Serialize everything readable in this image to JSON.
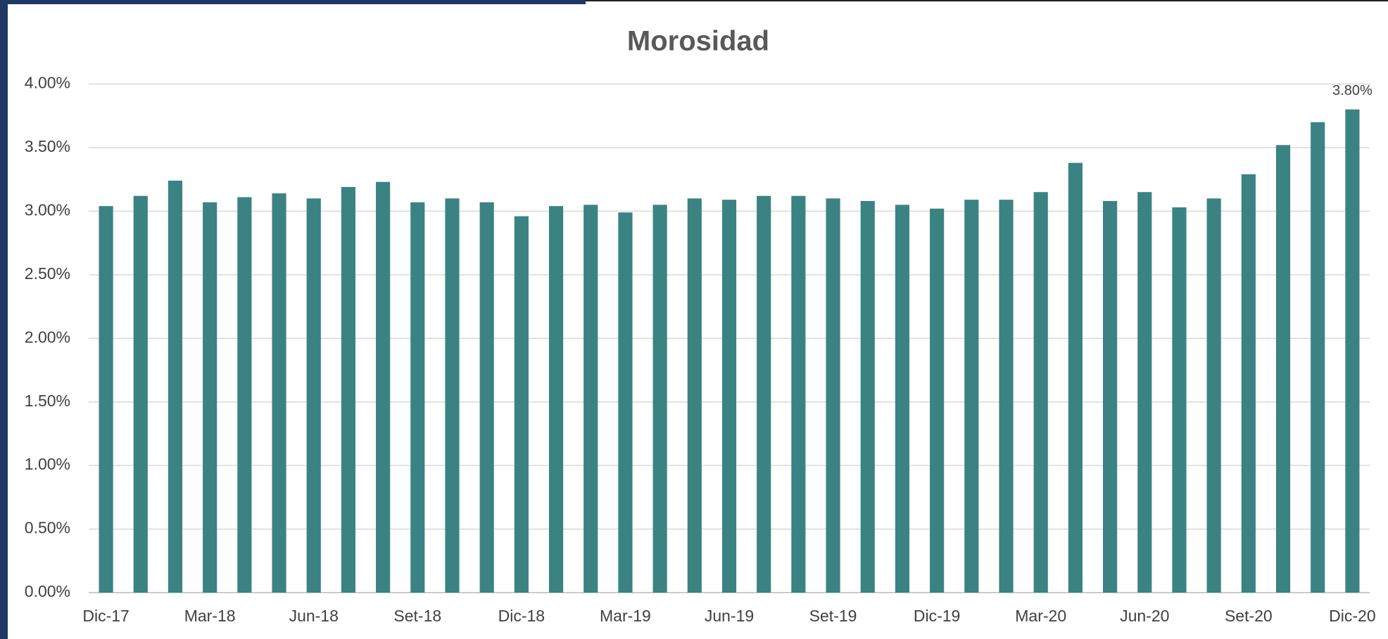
{
  "chart_data": {
    "type": "bar",
    "title": "Morosidad",
    "categories": [
      "Dic-17",
      null,
      null,
      "Mar-18",
      null,
      null,
      "Jun-18",
      null,
      null,
      "Set-18",
      null,
      null,
      "Dic-18",
      null,
      null,
      "Mar-19",
      null,
      null,
      "Jun-19",
      null,
      null,
      "Set-19",
      null,
      null,
      "Dic-19",
      null,
      null,
      "Mar-20",
      null,
      null,
      "Jun-20",
      null,
      null,
      "Set-20",
      null,
      null,
      "Dic-20"
    ],
    "values": [
      3.04,
      3.12,
      3.24,
      3.07,
      3.11,
      3.14,
      3.1,
      3.19,
      3.23,
      3.07,
      3.1,
      3.07,
      2.96,
      3.04,
      3.05,
      2.99,
      3.05,
      3.1,
      3.09,
      3.12,
      3.12,
      3.1,
      3.08,
      3.05,
      3.02,
      3.09,
      3.09,
      3.15,
      3.38,
      3.08,
      3.15,
      3.03,
      3.1,
      3.29,
      3.52,
      3.7,
      3.8
    ],
    "value_labels": [
      null,
      null,
      null,
      null,
      null,
      null,
      null,
      null,
      null,
      null,
      null,
      null,
      null,
      null,
      null,
      null,
      null,
      null,
      null,
      null,
      null,
      null,
      null,
      null,
      null,
      null,
      null,
      null,
      null,
      null,
      null,
      null,
      null,
      null,
      null,
      null,
      "3.80%"
    ],
    "color": "#3b8383",
    "ylim": [
      0,
      4
    ],
    "yticks": [
      {
        "value": 0,
        "label": "0.00%"
      },
      {
        "value": 0.5,
        "label": "0.50%"
      },
      {
        "value": 1,
        "label": "1.00%"
      },
      {
        "value": 1.5,
        "label": "1.50%"
      },
      {
        "value": 2,
        "label": "2.00%"
      },
      {
        "value": 2.5,
        "label": "2.50%"
      },
      {
        "value": 3,
        "label": "3.00%"
      },
      {
        "value": 3.5,
        "label": "3.50%"
      },
      {
        "value": 4,
        "label": "4.00%"
      }
    ],
    "grid": true
  }
}
